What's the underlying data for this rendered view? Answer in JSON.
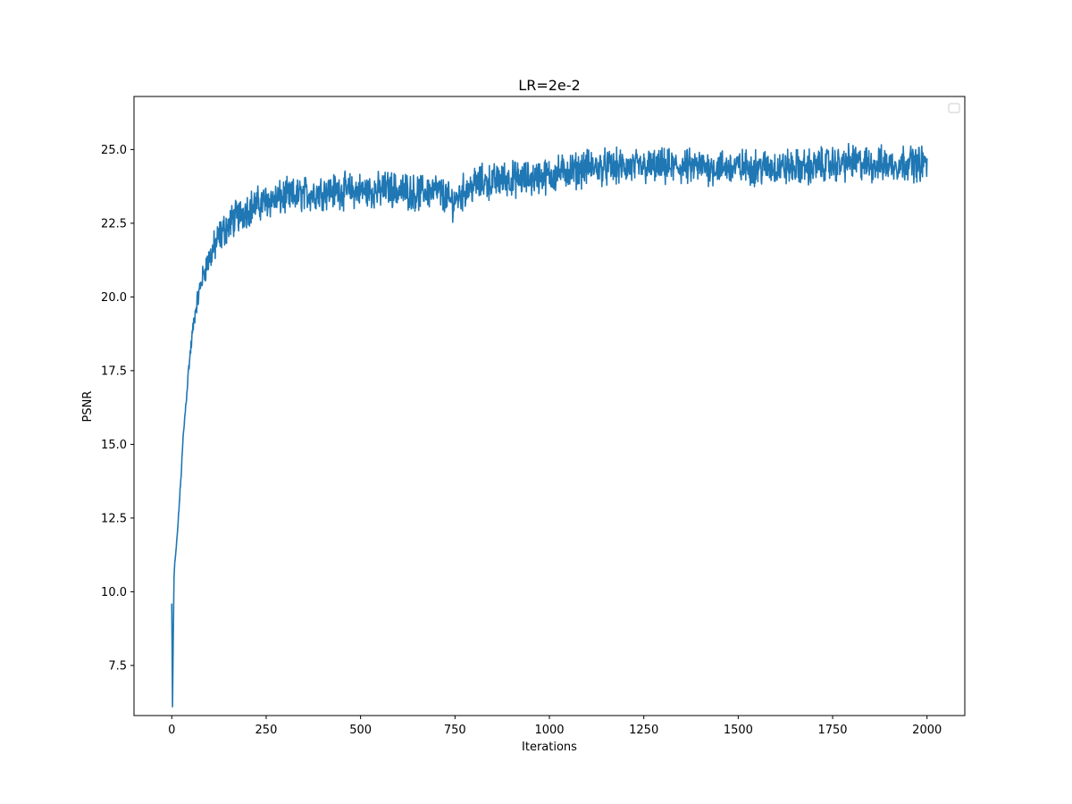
{
  "chart_data": {
    "type": "line",
    "title": "LR=2e-2",
    "xlabel": "Iterations",
    "ylabel": "PSNR",
    "xlim": [
      -100,
      2100
    ],
    "ylim": [
      5.8,
      26.8
    ],
    "xticks": [
      0,
      250,
      500,
      750,
      1000,
      1250,
      1500,
      1750,
      2000
    ],
    "xtick_labels": [
      "0",
      "250",
      "500",
      "750",
      "1000",
      "1250",
      "1500",
      "1750",
      "2000"
    ],
    "yticks": [
      7.5,
      10.0,
      12.5,
      15.0,
      17.5,
      20.0,
      22.5,
      25.0
    ],
    "ytick_labels": [
      "7.5",
      "10.0",
      "12.5",
      "15.0",
      "17.5",
      "20.0",
      "22.5",
      "25.0"
    ],
    "grid": false,
    "legend": {
      "placement": "top-right",
      "entries": []
    },
    "series": [
      {
        "color": "#1f77b4",
        "x": [
          0,
          2,
          4,
          6,
          8,
          10,
          15,
          20,
          25,
          30,
          35,
          40,
          45,
          50,
          55,
          60,
          65,
          70,
          75,
          80,
          85,
          90,
          95,
          100,
          110,
          120,
          130,
          140,
          150,
          160,
          170,
          180,
          190,
          200,
          220,
          240,
          260,
          280,
          300,
          325,
          350,
          375,
          400,
          425,
          450,
          475,
          500,
          525,
          550,
          575,
          600,
          625,
          650,
          675,
          700,
          725,
          740,
          750,
          775,
          800,
          825,
          850,
          875,
          900,
          925,
          950,
          975,
          1000,
          1025,
          1050,
          1075,
          1100,
          1125,
          1150,
          1175,
          1200,
          1225,
          1250,
          1275,
          1300,
          1325,
          1350,
          1375,
          1400,
          1425,
          1450,
          1475,
          1500,
          1525,
          1550,
          1575,
          1600,
          1625,
          1650,
          1675,
          1700,
          1725,
          1750,
          1775,
          1800,
          1825,
          1850,
          1875,
          1900,
          1925,
          1950,
          1975,
          2000
        ],
        "values": [
          9.6,
          6.1,
          8.5,
          10.5,
          11.0,
          11.2,
          12.0,
          13.0,
          14.0,
          15.2,
          16.0,
          16.8,
          17.6,
          18.2,
          18.8,
          19.3,
          19.7,
          20.0,
          20.3,
          20.6,
          20.8,
          21.0,
          21.2,
          21.3,
          21.6,
          21.9,
          22.1,
          22.3,
          22.4,
          22.6,
          22.7,
          22.8,
          22.9,
          23.0,
          23.1,
          23.2,
          23.3,
          23.3,
          23.4,
          23.4,
          23.5,
          23.5,
          23.6,
          23.6,
          23.6,
          23.6,
          23.6,
          23.6,
          23.6,
          23.7,
          23.6,
          23.6,
          23.5,
          23.6,
          23.6,
          23.4,
          23.2,
          23.3,
          23.6,
          23.8,
          23.9,
          23.9,
          24.0,
          24.0,
          24.0,
          24.0,
          24.1,
          24.1,
          24.2,
          24.3,
          24.3,
          24.4,
          24.4,
          24.4,
          24.4,
          24.4,
          24.4,
          24.4,
          24.4,
          24.4,
          24.4,
          24.4,
          24.4,
          24.4,
          24.4,
          24.4,
          24.4,
          24.4,
          24.4,
          24.4,
          24.4,
          24.4,
          24.4,
          24.4,
          24.4,
          24.4,
          24.5,
          24.5,
          24.5,
          24.6,
          24.5,
          24.5,
          24.5,
          24.5,
          24.5,
          24.6,
          24.5,
          24.6
        ],
        "noise_amplitude": 0.45
      }
    ]
  }
}
